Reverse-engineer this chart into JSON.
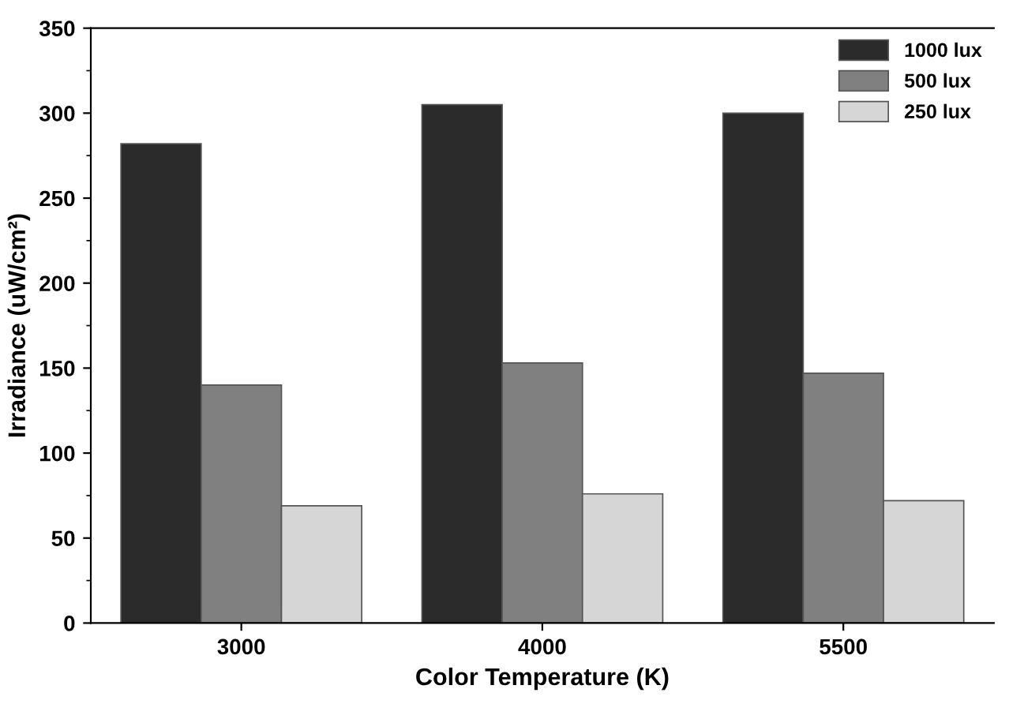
{
  "chart_data": {
    "type": "bar",
    "xlabel": "Color Temperature (K)",
    "ylabel": "Irradiance (uW/cm²)",
    "categories": [
      "3000",
      "4000",
      "5500"
    ],
    "series": [
      {
        "name": "1000 lux",
        "color": "#2b2b2b",
        "values": [
          282,
          305,
          300
        ]
      },
      {
        "name": "500 lux",
        "color": "#808080",
        "values": [
          140,
          153,
          147
        ]
      },
      {
        "name": "250 lux",
        "color": "#d6d6d6",
        "values": [
          69,
          76,
          72
        ]
      }
    ],
    "ylim": [
      0,
      350
    ],
    "yticks": [
      0,
      50,
      100,
      150,
      200,
      250,
      300,
      350
    ],
    "grid": false,
    "legend": "top right"
  }
}
